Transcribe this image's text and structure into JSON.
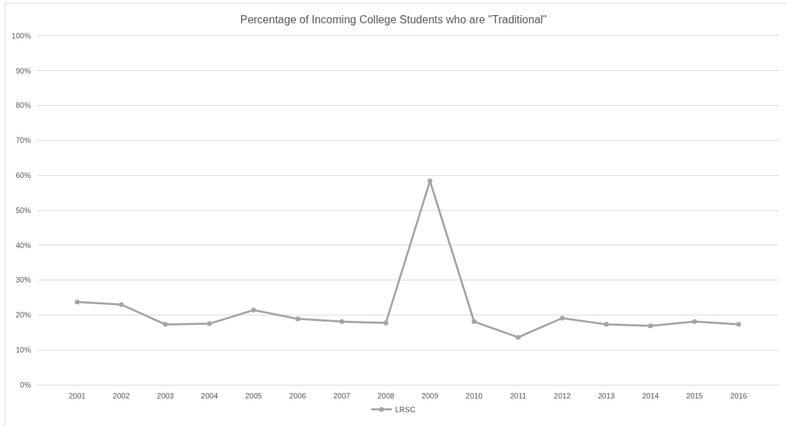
{
  "chart_data": {
    "type": "line",
    "title": "Percentage of Incoming College Students who are \"Traditional\"",
    "categories": [
      "2001",
      "2002",
      "2003",
      "2004",
      "2005",
      "2006",
      "2007",
      "2008",
      "2009",
      "2010",
      "2011",
      "2012",
      "2013",
      "2014",
      "2015",
      "2016"
    ],
    "series": [
      {
        "name": "LRSC",
        "color": "#a5a5a5",
        "values": [
          23.7,
          23.0,
          17.3,
          17.5,
          21.4,
          18.9,
          18.1,
          17.7,
          58.4,
          18.1,
          13.6,
          19.1,
          17.3,
          16.9,
          18.1,
          17.3
        ]
      }
    ],
    "ylim": [
      0,
      100
    ],
    "yticks": [
      {
        "value": 0,
        "label": "0%"
      },
      {
        "value": 10,
        "label": "10%"
      },
      {
        "value": 20,
        "label": "20%"
      },
      {
        "value": 30,
        "label": "30%"
      },
      {
        "value": 40,
        "label": "40%"
      },
      {
        "value": 50,
        "label": "50%"
      },
      {
        "value": 60,
        "label": "60%"
      },
      {
        "value": 70,
        "label": "70%"
      },
      {
        "value": 80,
        "label": "80%"
      },
      {
        "value": 90,
        "label": "90%"
      },
      {
        "value": 100,
        "label": "100%"
      }
    ],
    "grid": "y",
    "legend": "bottom",
    "marker": "circle",
    "line_style": "solid"
  }
}
